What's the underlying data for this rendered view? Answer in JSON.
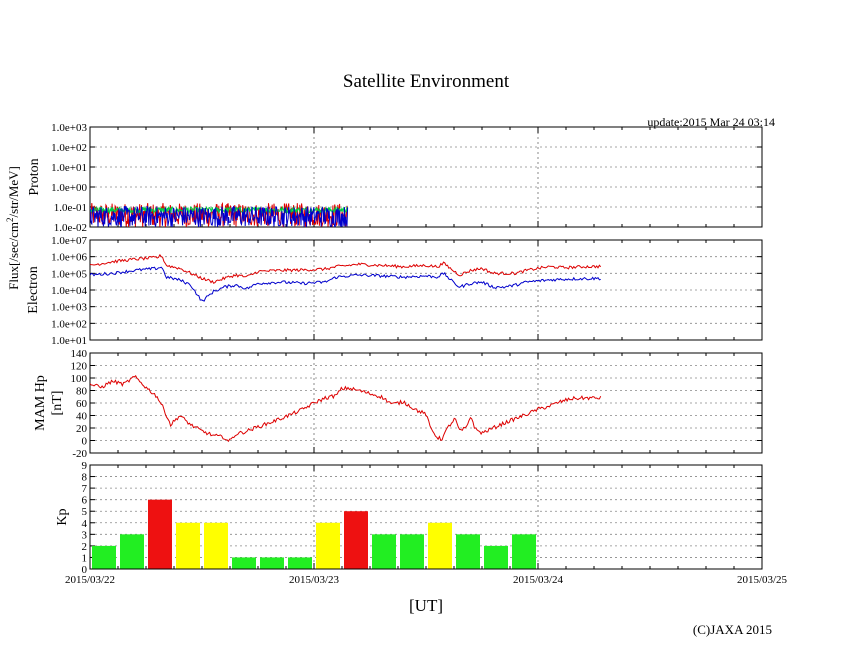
{
  "page": {
    "title": "Satellite Environment",
    "update": "update:2015 Mar 24 03:14",
    "copyright": "(C)JAXA 2015",
    "xlabel": "[UT]",
    "flux_label": "Flux[/sec/cm²/str/MeV]"
  },
  "colors": {
    "red": "#dd0000",
    "blue": "#0000cc",
    "green": "#00cc44",
    "kp_green": "#22ee22",
    "kp_yellow": "#ffff00",
    "kp_red": "#ee1111"
  },
  "chart_data": [
    {
      "type": "line",
      "title": "Proton",
      "ylabel": "Proton",
      "yscale": "log",
      "ylim": [
        0.01,
        1000
      ],
      "yticks": [
        "1.0e-02",
        "1.0e-01",
        "1.0e+00",
        "1.0e+01",
        "1.0e+02",
        "1.0e+03"
      ],
      "xlim_days": [
        0,
        3
      ],
      "series": [
        {
          "name": "red",
          "note": "noise near floor",
          "approx": [
            [
              0,
              0.04
            ],
            [
              1.15,
              0.04
            ]
          ]
        },
        {
          "name": "green",
          "approx": [
            [
              0,
              0.07
            ],
            [
              1.15,
              0.07
            ]
          ]
        },
        {
          "name": "blue",
          "approx": [
            [
              0,
              0.06
            ],
            [
              1.15,
              0.06
            ]
          ]
        }
      ]
    },
    {
      "type": "line",
      "title": "Electron",
      "ylabel": "Electron",
      "yscale": "log",
      "ylim": [
        10,
        10000000
      ],
      "yticks": [
        "1.0e+01",
        "1.0e+02",
        "1.0e+03",
        "1.0e+04",
        "1.0e+05",
        "1.0e+06",
        "1.0e+07"
      ],
      "xlim_days": [
        0,
        3
      ],
      "series": [
        {
          "name": "red",
          "points": [
            [
              0,
              300000
            ],
            [
              0.1,
              500000
            ],
            [
              0.2,
              700000
            ],
            [
              0.3,
              900000
            ],
            [
              0.32,
              1200000
            ],
            [
              0.34,
              300000
            ],
            [
              0.4,
              200000
            ],
            [
              0.45,
              100000
            ],
            [
              0.5,
              50000
            ],
            [
              0.55,
              30000
            ],
            [
              0.6,
              50000
            ],
            [
              0.65,
              80000
            ],
            [
              0.7,
              60000
            ],
            [
              0.75,
              130000
            ],
            [
              0.85,
              150000
            ],
            [
              0.95,
              160000
            ],
            [
              1.05,
              180000
            ],
            [
              1.1,
              250000
            ],
            [
              1.2,
              350000
            ],
            [
              1.3,
              300000
            ],
            [
              1.4,
              250000
            ],
            [
              1.5,
              300000
            ],
            [
              1.55,
              250000
            ],
            [
              1.58,
              400000
            ],
            [
              1.62,
              150000
            ],
            [
              1.65,
              80000
            ],
            [
              1.7,
              150000
            ],
            [
              1.75,
              200000
            ],
            [
              1.8,
              100000
            ],
            [
              1.85,
              100000
            ],
            [
              1.9,
              100000
            ],
            [
              1.95,
              150000
            ],
            [
              2.0,
              200000
            ],
            [
              2.05,
              250000
            ],
            [
              2.12,
              220000
            ],
            [
              2.2,
              250000
            ],
            [
              2.28,
              260000
            ]
          ]
        },
        {
          "name": "blue",
          "points": [
            [
              0,
              80000
            ],
            [
              0.1,
              100000
            ],
            [
              0.2,
              150000
            ],
            [
              0.3,
              200000
            ],
            [
              0.32,
              250000
            ],
            [
              0.34,
              60000
            ],
            [
              0.4,
              40000
            ],
            [
              0.45,
              20000
            ],
            [
              0.48,
              5000
            ],
            [
              0.5,
              2000
            ],
            [
              0.55,
              8000
            ],
            [
              0.6,
              15000
            ],
            [
              0.65,
              20000
            ],
            [
              0.7,
              12000
            ],
            [
              0.75,
              25000
            ],
            [
              0.85,
              30000
            ],
            [
              0.95,
              25000
            ],
            [
              1.05,
              30000
            ],
            [
              1.1,
              60000
            ],
            [
              1.2,
              80000
            ],
            [
              1.3,
              70000
            ],
            [
              1.4,
              60000
            ],
            [
              1.5,
              70000
            ],
            [
              1.55,
              60000
            ],
            [
              1.58,
              100000
            ],
            [
              1.62,
              30000
            ],
            [
              1.65,
              15000
            ],
            [
              1.7,
              25000
            ],
            [
              1.75,
              30000
            ],
            [
              1.8,
              15000
            ],
            [
              1.85,
              15000
            ],
            [
              1.9,
              20000
            ],
            [
              1.95,
              30000
            ],
            [
              2.0,
              35000
            ],
            [
              2.05,
              40000
            ],
            [
              2.12,
              45000
            ],
            [
              2.2,
              48000
            ],
            [
              2.28,
              50000
            ]
          ]
        }
      ]
    },
    {
      "type": "line",
      "title": "MAM Hp",
      "ylabel": "MAM Hp [nT]",
      "ylim": [
        -20,
        140
      ],
      "yticks": [
        -20,
        0,
        20,
        40,
        60,
        80,
        100,
        120,
        140
      ],
      "xlim_days": [
        0,
        3
      ],
      "series": [
        {
          "name": "Hp",
          "points": [
            [
              0,
              90
            ],
            [
              0.05,
              85
            ],
            [
              0.1,
              95
            ],
            [
              0.15,
              90
            ],
            [
              0.2,
              102
            ],
            [
              0.25,
              85
            ],
            [
              0.3,
              70
            ],
            [
              0.33,
              50
            ],
            [
              0.36,
              25
            ],
            [
              0.4,
              40
            ],
            [
              0.45,
              25
            ],
            [
              0.5,
              15
            ],
            [
              0.55,
              8
            ],
            [
              0.6,
              5
            ],
            [
              0.62,
              -2
            ],
            [
              0.65,
              10
            ],
            [
              0.7,
              15
            ],
            [
              0.75,
              22
            ],
            [
              0.8,
              28
            ],
            [
              0.85,
              35
            ],
            [
              0.9,
              42
            ],
            [
              0.95,
              50
            ],
            [
              1.0,
              60
            ],
            [
              1.05,
              68
            ],
            [
              1.1,
              72
            ],
            [
              1.12,
              82
            ],
            [
              1.15,
              84
            ],
            [
              1.2,
              80
            ],
            [
              1.25,
              75
            ],
            [
              1.3,
              70
            ],
            [
              1.35,
              58
            ],
            [
              1.4,
              62
            ],
            [
              1.45,
              50
            ],
            [
              1.5,
              42
            ],
            [
              1.52,
              20
            ],
            [
              1.55,
              5
            ],
            [
              1.57,
              2
            ],
            [
              1.6,
              22
            ],
            [
              1.63,
              35
            ],
            [
              1.65,
              15
            ],
            [
              1.68,
              20
            ],
            [
              1.7,
              40
            ],
            [
              1.72,
              18
            ],
            [
              1.75,
              12
            ],
            [
              1.8,
              20
            ],
            [
              1.85,
              28
            ],
            [
              1.9,
              35
            ],
            [
              1.95,
              42
            ],
            [
              2.0,
              50
            ],
            [
              2.05,
              55
            ],
            [
              2.1,
              62
            ],
            [
              2.15,
              67
            ],
            [
              2.2,
              68
            ],
            [
              2.28,
              68
            ]
          ]
        }
      ]
    },
    {
      "type": "bar",
      "title": "Kp",
      "ylabel": "Kp",
      "ylim": [
        0,
        9
      ],
      "yticks": [
        0,
        1,
        2,
        3,
        4,
        5,
        6,
        7,
        8,
        9
      ],
      "xlim_days": [
        0,
        3
      ],
      "bar_width_days": 0.125,
      "values": [
        2,
        3,
        6,
        4,
        4,
        1,
        1,
        1,
        4,
        5,
        3,
        3,
        4,
        3,
        2,
        3
      ],
      "bar_colors": [
        "kp_green",
        "kp_green",
        "kp_red",
        "kp_yellow",
        "kp_yellow",
        "kp_green",
        "kp_green",
        "kp_green",
        "kp_yellow",
        "kp_red",
        "kp_green",
        "kp_green",
        "kp_yellow",
        "kp_green",
        "kp_green",
        "kp_green"
      ],
      "xtick_labels": [
        "2015/03/22",
        "2015/03/23",
        "2015/03/24",
        "2015/03/25"
      ]
    }
  ]
}
